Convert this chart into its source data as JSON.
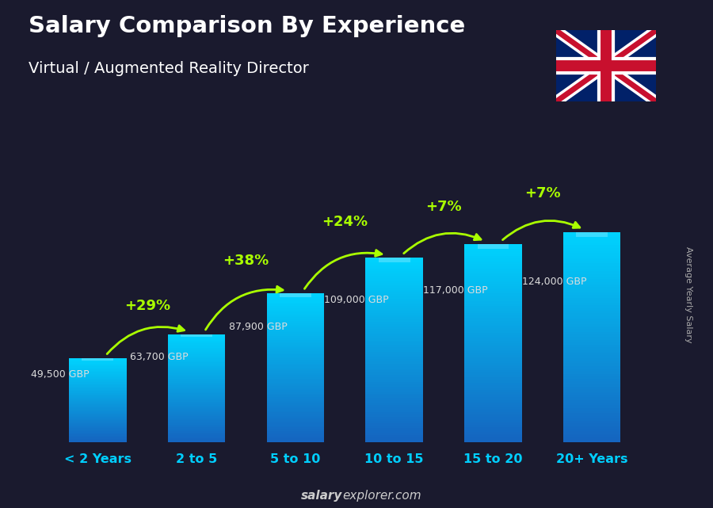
{
  "title": "Salary Comparison By Experience",
  "subtitle": "Virtual / Augmented Reality Director",
  "categories": [
    "< 2 Years",
    "2 to 5",
    "5 to 10",
    "10 to 15",
    "15 to 20",
    "20+ Years"
  ],
  "values": [
    49500,
    63700,
    87900,
    109000,
    117000,
    124000
  ],
  "labels": [
    "49,500 GBP",
    "63,700 GBP",
    "87,900 GBP",
    "109,000 GBP",
    "117,000 GBP",
    "124,000 GBP"
  ],
  "pct_changes": [
    "+29%",
    "+38%",
    "+24%",
    "+7%",
    "+7%"
  ],
  "bar_color_top": "#00d4ff",
  "bar_color_bottom": "#1565c0",
  "background_color": "#1a1a2e",
  "title_color": "#ffffff",
  "subtitle_color": "#ffffff",
  "label_color": "#dddddd",
  "pct_color": "#aaff00",
  "xlabel_color": "#00cfff",
  "watermark_bold": "salary",
  "watermark_normal": "explorer.com",
  "ylabel_text": "Average Yearly Salary",
  "ylabel_color": "#aaaaaa"
}
